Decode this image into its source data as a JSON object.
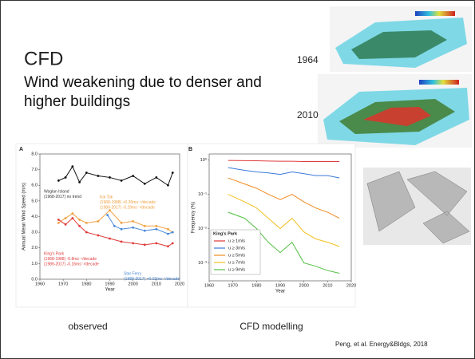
{
  "slide": {
    "title": "CFD",
    "subtitle": "Wind weakening due to denser and higher buildings",
    "labels": [
      "1964",
      "2010"
    ],
    "captions": [
      "observed",
      "CFD modelling"
    ],
    "citation": "Peng, et al. Energy&Bldgs, 2018"
  },
  "chart_data": [
    {
      "type": "line",
      "panel": "A",
      "xlabel": "Year",
      "ylabel": "Annual Mean Wind Speed (m/s)",
      "xlim": [
        1960,
        2020
      ],
      "xticks": [
        1960,
        1970,
        1980,
        1990,
        2000,
        2010,
        2020
      ],
      "ylim": [
        0,
        8
      ],
      "yticks": [
        {
          "value": 0,
          "label": "0.0"
        },
        {
          "value": 1,
          "label": "1.0"
        },
        {
          "value": 2,
          "label": "2.0"
        },
        {
          "value": 3,
          "label": "3.0"
        },
        {
          "value": 4,
          "label": "4.0"
        },
        {
          "value": 5,
          "label": "5.0"
        },
        {
          "value": 6,
          "label": "6.0"
        },
        {
          "value": 7,
          "label": "7.0"
        },
        {
          "value": 8,
          "label": "8.0"
        }
      ],
      "series": [
        {
          "color": "#111111",
          "x": [
            1968,
            1971,
            1974,
            1977,
            1980,
            1985,
            1990,
            1995,
            2000,
            2005,
            2010,
            2015,
            2017
          ],
          "values": [
            6.3,
            6.5,
            7.2,
            6.2,
            6.8,
            6.6,
            6.5,
            6.3,
            6.6,
            6.1,
            6.5,
            6.0,
            6.8
          ]
        },
        {
          "color": "#f0a040",
          "x": [
            1968,
            1971,
            1974,
            1977,
            1980,
            1985,
            1990,
            1995,
            2000,
            2005,
            2010,
            2015,
            2017
          ],
          "values": [
            3.6,
            3.9,
            4.2,
            3.8,
            3.6,
            3.7,
            4.4,
            3.6,
            3.7,
            3.4,
            3.4,
            3.2,
            3.0
          ]
        },
        {
          "color": "#4a8ad8",
          "x": [
            1989,
            1992,
            1995,
            2000,
            2005,
            2010,
            2015,
            2017
          ],
          "values": [
            4.1,
            3.4,
            3.2,
            3.3,
            3.1,
            3.2,
            2.9,
            3.0
          ]
        },
        {
          "color": "#e03a3a",
          "x": [
            1968,
            1971,
            1974,
            1977,
            1980,
            1985,
            1990,
            1995,
            2000,
            2005,
            2010,
            2015,
            2017
          ],
          "values": [
            3.8,
            3.5,
            3.9,
            3.4,
            3.0,
            2.8,
            2.6,
            2.4,
            2.3,
            2.2,
            2.3,
            2.1,
            2.3
          ]
        }
      ],
      "annotations": [
        {
          "lines": [
            "Waglan Island",
            "(1968-2017) no trend"
          ],
          "color": "#333333"
        },
        {
          "lines": [
            "Kai Tak",
            "(1968-1988) +0.30ms⁻¹/decade",
            "(1989-2017) -0.29ms⁻¹/decade"
          ],
          "color": "#f0a040"
        },
        {
          "lines": [
            "King's Park",
            "(1968-1988) -0.8ms⁻¹/decade",
            "(1989-2017) -0.16ms⁻¹/decade"
          ],
          "color": "#e03a3a"
        },
        {
          "lines": [
            "Star Ferry",
            "(1989-2017) +0.02ms⁻¹/decade"
          ],
          "color": "#4a8ad8"
        }
      ]
    },
    {
      "type": "line",
      "panel": "B",
      "xlabel": "Year",
      "ylabel": "Frequency (%)",
      "log_y": true,
      "xlim": [
        1960,
        2020
      ],
      "xticks": [
        1960,
        1970,
        1980,
        1990,
        2000,
        2010,
        2020
      ],
      "ylim": [
        0.0003,
        1.5
      ],
      "yticks": [
        {
          "value": 1,
          "label": "10⁰"
        },
        {
          "value": 0.1,
          "label": "10⁻¹"
        },
        {
          "value": 0.01,
          "label": "10⁻²"
        },
        {
          "value": 0.001,
          "label": "10⁻³"
        }
      ],
      "x": [
        1968,
        1975,
        1980,
        1985,
        1990,
        1995,
        2000,
        2005,
        2010,
        2015
      ],
      "legend_title": "King's Park",
      "series": [
        {
          "name": "u ≥ 1m/s",
          "color": "#e03a3a",
          "values": [
            0.97,
            0.96,
            0.95,
            0.93,
            0.92,
            0.92,
            0.9,
            0.9,
            0.9,
            0.9
          ]
        },
        {
          "name": "u ≥ 3m/s",
          "color": "#3a7ad8",
          "values": [
            0.6,
            0.5,
            0.45,
            0.42,
            0.38,
            0.45,
            0.4,
            0.35,
            0.35,
            0.3
          ]
        },
        {
          "name": "u ≥ 5m/s",
          "color": "#f08a20",
          "values": [
            0.3,
            0.2,
            0.15,
            0.1,
            0.07,
            0.1,
            0.06,
            0.04,
            0.03,
            0.02
          ]
        },
        {
          "name": "u ≥ 7m/s",
          "color": "#f0c020",
          "values": [
            0.1,
            0.06,
            0.04,
            0.02,
            0.01,
            0.02,
            0.008,
            0.005,
            0.004,
            0.003
          ]
        },
        {
          "name": "u ≥ 9m/s",
          "color": "#50c040",
          "values": [
            0.03,
            0.02,
            0.01,
            0.004,
            0.002,
            0.004,
            0.001,
            0.0008,
            0.0006,
            0.0005
          ]
        }
      ]
    }
  ]
}
